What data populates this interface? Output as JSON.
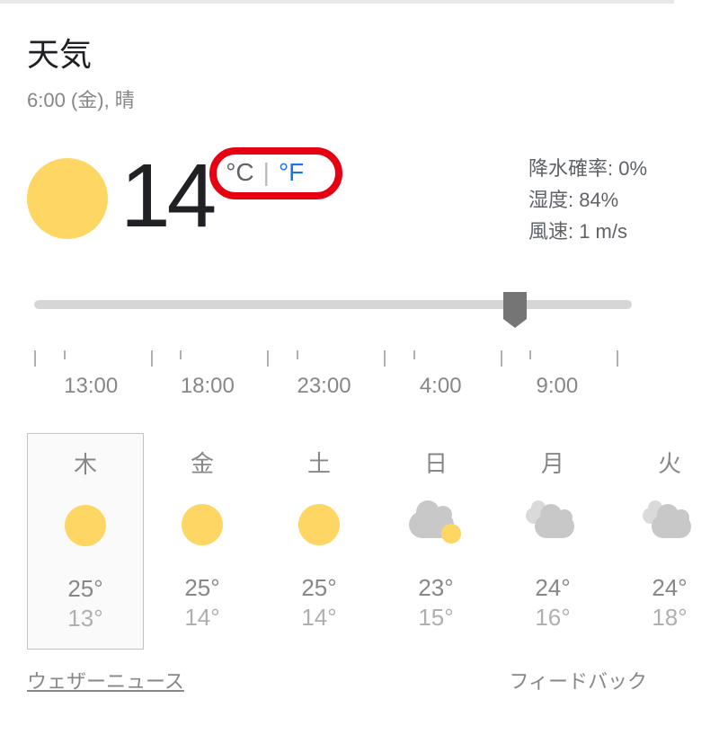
{
  "header": {
    "title": "天気",
    "subtitle": "6:00 (金), 晴"
  },
  "current": {
    "temp": "14",
    "unit_c": "°C",
    "unit_sep": "|",
    "unit_f": "°F",
    "icon": "sun"
  },
  "stats": {
    "precip_label": "降水確率:",
    "precip_value": "0%",
    "humidity_label": "湿度:",
    "humidity_value": "84%",
    "wind_label": "風速:",
    "wind_value": "1 m/s"
  },
  "slider": {
    "position_pct": 78.5,
    "ticks_major_pct": [
      0,
      19.5,
      39,
      58.5,
      78,
      97.5
    ],
    "ticks_minor_pct": [
      4.9,
      24.4,
      43.9,
      63.4,
      82.9
    ],
    "times": [
      {
        "label": "13:00",
        "pos_pct": 9.5
      },
      {
        "label": "18:00",
        "pos_pct": 29
      },
      {
        "label": "23:00",
        "pos_pct": 48.5
      },
      {
        "label": "4:00",
        "pos_pct": 68
      },
      {
        "label": "9:00",
        "pos_pct": 87.5
      }
    ]
  },
  "forecast": [
    {
      "day": "木",
      "icon": "sun",
      "high": "25°",
      "low": "13°",
      "selected": true
    },
    {
      "day": "金",
      "icon": "sun",
      "high": "25°",
      "low": "14°",
      "selected": false
    },
    {
      "day": "土",
      "icon": "sun",
      "high": "25°",
      "low": "14°",
      "selected": false
    },
    {
      "day": "日",
      "icon": "cloud-sun",
      "high": "23°",
      "low": "15°",
      "selected": false
    },
    {
      "day": "月",
      "icon": "cloud",
      "high": "24°",
      "low": "16°",
      "selected": false
    },
    {
      "day": "火",
      "icon": "cloud",
      "high": "24°",
      "low": "18°",
      "selected": false
    }
  ],
  "footer": {
    "source": "ウェザーニュース",
    "feedback": "フィードバック"
  },
  "annotation": {
    "highlight_color": "#e60012"
  },
  "colors": {
    "sun": "#fdd663",
    "cloud": "#c8c8c8",
    "text_primary": "#202124",
    "text_secondary": "#878787",
    "text_tertiary": "#afafaf",
    "link_blue": "#1a73e8",
    "slider_track": "#d6d6d6",
    "slider_thumb": "#757575"
  }
}
